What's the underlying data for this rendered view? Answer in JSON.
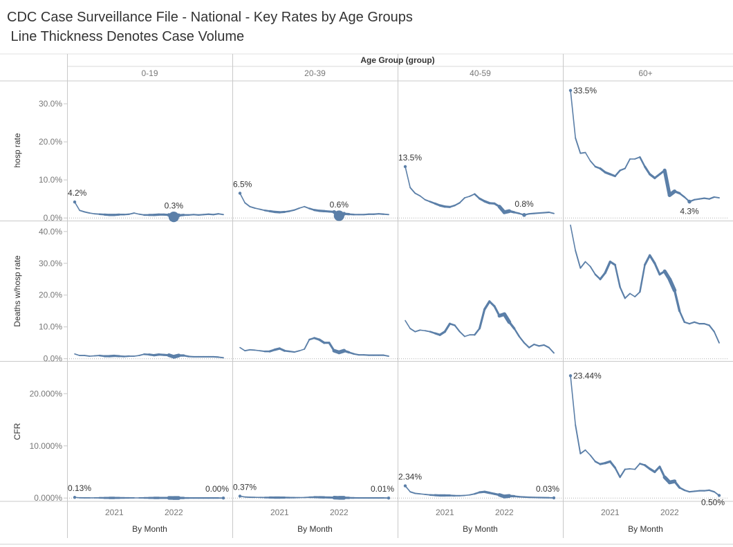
{
  "title": "CDC Case Surveillance File - National - Key Rates by Age Groups",
  "subtitle": " Line Thickness Denotes Case Volume",
  "column_group_label": "Age Group (group)",
  "x_axis_label": "By Month",
  "colors": {
    "line": "#5b7fa8",
    "text": "#333333",
    "axis": "#777777",
    "grid": "#c8c8c8"
  },
  "chart_data": {
    "type": "line",
    "columns": [
      "0-19",
      "20-39",
      "40-59",
      "60+"
    ],
    "x": [
      "2020-05",
      "2020-06",
      "2020-07",
      "2020-08",
      "2020-09",
      "2020-10",
      "2020-11",
      "2020-12",
      "2021-01",
      "2021-02",
      "2021-03",
      "2021-04",
      "2021-05",
      "2021-06",
      "2021-07",
      "2021-08",
      "2021-09",
      "2021-10",
      "2021-11",
      "2021-12",
      "2022-01",
      "2022-02",
      "2022-03",
      "2022-04",
      "2022-05",
      "2022-06",
      "2022-07",
      "2022-08",
      "2022-09",
      "2022-10",
      "2022-11"
    ],
    "x_ticks": [
      {
        "label": "2021",
        "index": 8
      },
      {
        "label": "2022",
        "index": 20
      }
    ],
    "volume_index": [
      1,
      1,
      2,
      1,
      1,
      2,
      3,
      4,
      4,
      3,
      2,
      2,
      1,
      1,
      2,
      3,
      4,
      4,
      3,
      4,
      10,
      5,
      3,
      2,
      2,
      2,
      2,
      2,
      2,
      2,
      1
    ],
    "rows": [
      {
        "metric": "hosp rate",
        "ylim": [
          -0.5,
          36
        ],
        "ticks": [
          {
            "v": 0,
            "label": "0.0%"
          },
          {
            "v": 10,
            "label": "10.0%"
          },
          {
            "v": 20,
            "label": "20.0%"
          },
          {
            "v": 30,
            "label": "30.0%"
          }
        ],
        "series": [
          {
            "name": "0-19",
            "values": [
              4.2,
              2.0,
              1.6,
              1.3,
              1.1,
              1.0,
              0.9,
              0.8,
              0.8,
              0.9,
              0.9,
              1.0,
              1.3,
              1.0,
              0.8,
              0.8,
              0.8,
              0.9,
              0.9,
              0.8,
              0.3,
              0.7,
              0.8,
              0.8,
              0.9,
              0.8,
              0.9,
              1.0,
              0.9,
              1.1,
              0.9
            ],
            "labels": [
              {
                "index": 0,
                "text": "4.2%"
              },
              {
                "index": 20,
                "text": "0.3%"
              }
            ]
          },
          {
            "name": "20-39",
            "values": [
              6.5,
              4.0,
              3.0,
              2.6,
              2.3,
              2.0,
              1.8,
              1.6,
              1.5,
              1.6,
              1.8,
              2.1,
              2.6,
              3.0,
              2.5,
              2.1,
              1.9,
              1.8,
              1.7,
              1.6,
              0.6,
              1.1,
              1.0,
              0.9,
              0.9,
              0.9,
              1.0,
              1.0,
              1.1,
              1.0,
              0.9
            ],
            "labels": [
              {
                "index": 0,
                "text": "6.5%"
              },
              {
                "index": 20,
                "text": "0.6%"
              }
            ]
          },
          {
            "name": "40-59",
            "values": [
              13.5,
              8.0,
              6.5,
              5.8,
              4.8,
              4.3,
              3.8,
              3.3,
              3.0,
              2.9,
              3.3,
              4.0,
              5.3,
              5.7,
              6.3,
              5.1,
              4.4,
              3.9,
              3.8,
              3.0,
              1.5,
              1.8,
              1.5,
              1.2,
              0.8,
              1.1,
              1.2,
              1.3,
              1.4,
              1.5,
              1.2
            ],
            "labels": [
              {
                "index": 0,
                "text": "13.5%"
              },
              {
                "index": 24,
                "text": "0.8%"
              }
            ]
          },
          {
            "name": "60+",
            "values": [
              33.5,
              21.0,
              17.0,
              17.2,
              15.0,
              13.5,
              13.0,
              12.0,
              11.5,
              11.0,
              12.5,
              13.0,
              15.5,
              15.5,
              16.0,
              13.5,
              11.5,
              10.5,
              11.5,
              12.5,
              6.0,
              7.0,
              6.5,
              5.5,
              4.3,
              4.8,
              5.0,
              5.2,
              5.0,
              5.5,
              5.3
            ],
            "labels": [
              {
                "index": 0,
                "text": "33.5%"
              },
              {
                "index": 24,
                "text": "4.3%"
              }
            ]
          }
        ]
      },
      {
        "metric": "Deaths w/hosp rate",
        "ylim": [
          -0.5,
          43
        ],
        "ticks": [
          {
            "v": 0,
            "label": "0.0%"
          },
          {
            "v": 10,
            "label": "10.0%"
          },
          {
            "v": 20,
            "label": "20.0%"
          },
          {
            "v": 30,
            "label": "30.0%"
          },
          {
            "v": 40,
            "label": "40.0%"
          }
        ],
        "series": [
          {
            "name": "0-19",
            "values": [
              1.5,
              1.0,
              1.0,
              0.8,
              0.9,
              1.0,
              0.8,
              0.8,
              0.9,
              0.8,
              0.7,
              0.8,
              0.8,
              1.0,
              1.4,
              1.3,
              1.1,
              1.3,
              1.2,
              1.1,
              0.6,
              1.0,
              1.0,
              0.7,
              0.6,
              0.6,
              0.6,
              0.6,
              0.6,
              0.5,
              0.3
            ],
            "labels": []
          },
          {
            "name": "20-39",
            "values": [
              3.5,
              2.5,
              2.8,
              2.7,
              2.5,
              2.3,
              2.3,
              2.8,
              3.2,
              2.5,
              2.3,
              2.1,
              2.5,
              3.0,
              6.0,
              6.5,
              6.0,
              5.0,
              5.0,
              2.5,
              2.0,
              2.5,
              2.0,
              1.5,
              1.2,
              1.2,
              1.1,
              1.1,
              1.1,
              1.1,
              0.8
            ],
            "labels": []
          },
          {
            "name": "40-59",
            "values": [
              12.0,
              9.5,
              8.5,
              9.0,
              8.8,
              8.5,
              8.0,
              7.5,
              8.5,
              11.0,
              10.5,
              8.5,
              7.0,
              7.5,
              7.5,
              9.5,
              15.5,
              18.0,
              16.5,
              13.5,
              14.0,
              11.5,
              9.5,
              7.0,
              5.0,
              3.5,
              4.5,
              4.0,
              4.3,
              3.5,
              1.8
            ],
            "labels": []
          },
          {
            "name": "60+",
            "values": [
              42.0,
              34.0,
              28.5,
              30.5,
              29.0,
              26.5,
              25.0,
              27.0,
              30.5,
              29.5,
              22.5,
              19.0,
              20.5,
              19.5,
              21.0,
              29.5,
              32.5,
              30.0,
              26.5,
              27.5,
              25.0,
              21.5,
              15.0,
              11.5,
              11.0,
              11.5,
              11.0,
              11.0,
              10.5,
              8.5,
              5.0
            ],
            "labels": []
          }
        ]
      },
      {
        "metric": "CFR",
        "ylim": [
          -0.5,
          26
        ],
        "ticks": [
          {
            "v": 0,
            "label": "0.000%"
          },
          {
            "v": 10,
            "label": "10.000%"
          },
          {
            "v": 20,
            "label": "20.000%"
          }
        ],
        "series": [
          {
            "name": "0-19",
            "values": [
              0.13,
              0.05,
              0.04,
              0.04,
              0.04,
              0.04,
              0.03,
              0.03,
              0.03,
              0.03,
              0.03,
              0.03,
              0.03,
              0.03,
              0.03,
              0.03,
              0.03,
              0.03,
              0.03,
              0.03,
              0.01,
              0.02,
              0.02,
              0.01,
              0.01,
              0.01,
              0.01,
              0.01,
              0.01,
              0.01,
              0.0
            ],
            "labels": [
              {
                "index": 0,
                "text": "0.13%"
              },
              {
                "index": 30,
                "text": "0.00%"
              }
            ]
          },
          {
            "name": "20-39",
            "values": [
              0.37,
              0.2,
              0.15,
              0.14,
              0.12,
              0.1,
              0.1,
              0.09,
              0.09,
              0.09,
              0.08,
              0.08,
              0.09,
              0.1,
              0.15,
              0.17,
              0.15,
              0.13,
              0.1,
              0.08,
              0.04,
              0.05,
              0.04,
              0.03,
              0.02,
              0.02,
              0.02,
              0.02,
              0.02,
              0.02,
              0.01
            ],
            "labels": [
              {
                "index": 0,
                "text": "0.37%"
              },
              {
                "index": 30,
                "text": "0.01%"
              }
            ]
          },
          {
            "name": "40-59",
            "values": [
              2.34,
              1.2,
              0.9,
              0.8,
              0.7,
              0.6,
              0.55,
              0.5,
              0.5,
              0.5,
              0.45,
              0.45,
              0.5,
              0.6,
              0.8,
              1.1,
              1.2,
              1.0,
              0.8,
              0.6,
              0.3,
              0.4,
              0.35,
              0.25,
              0.2,
              0.15,
              0.12,
              0.1,
              0.08,
              0.06,
              0.03
            ],
            "labels": [
              {
                "index": 0,
                "text": "2.34%"
              },
              {
                "index": 30,
                "text": "0.03%"
              }
            ]
          },
          {
            "name": "60+",
            "values": [
              23.44,
              14.0,
              8.5,
              9.2,
              8.2,
              7.0,
              6.5,
              6.7,
              7.0,
              5.8,
              4.0,
              5.5,
              5.6,
              5.5,
              6.6,
              6.3,
              5.6,
              5.0,
              6.0,
              4.0,
              3.0,
              3.2,
              2.0,
              1.5,
              1.2,
              1.3,
              1.4,
              1.4,
              1.5,
              1.2,
              0.5
            ],
            "labels": [
              {
                "index": 0,
                "text": "23.44%"
              },
              {
                "index": 30,
                "text": "0.50%"
              }
            ]
          }
        ]
      }
    ]
  }
}
